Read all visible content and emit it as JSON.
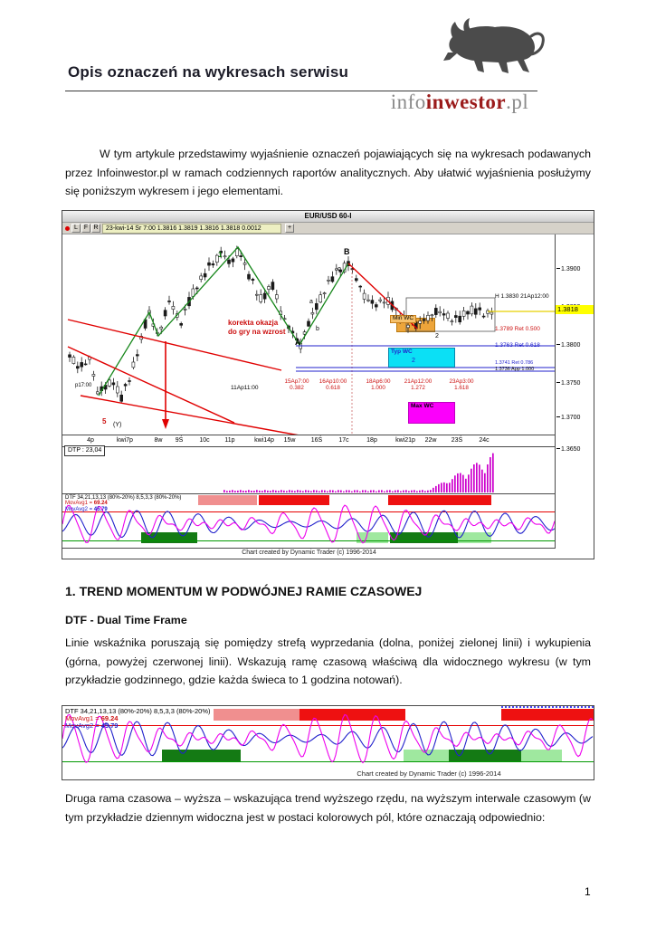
{
  "doc": {
    "title": "Opis oznaczeń na wykresach serwisu",
    "intro": "W tym artykule przedstawimy wyjaśnienie oznaczeń pojawiających się na wykresach podawanych przez Infoinwestor.pl w ramach codziennych raportów analitycznych. Aby ułatwić wyjaśnienia posłużymy się poniższym wykresem i jego elementami.",
    "page_number": "1"
  },
  "logo": {
    "info": "info",
    "inwestor": "inwestor",
    "pl": ".pl"
  },
  "section1": {
    "heading": "1. TREND MOMENTUM W PODWÓJNEJ RAMIE CZASOWEJ",
    "subheading": "DTF - Dual Time Frame",
    "para1": "Linie wskaźnika poruszają się pomiędzy strefą wyprzedania (dolna, poniżej zielonej linii) i wykupienia (górna, powyżej czerwonej linii). Wskazują ramę czasową właściwą dla widocznego wykresu (w tym przykładzie godzinnego, gdzie każda świeca to 1 godzina notowań).",
    "para2": "Druga rama czasowa – wyższa – wskazująca trend wyższego rzędu, na wyższym interwale czasowym (w tym przykładzie dziennym widoczna jest w postaci kolorowych pól, które oznaczają odpowiednio:"
  },
  "chart1": {
    "title": "EUR/USD 60-I",
    "toolbar": {
      "l": "L",
      "f": "F",
      "r": "R",
      "ohlc": "23-kwi-14 Śr 7:00  1.3816  1.3819  1.3816  1.3818  0.0012",
      "plus": "+"
    },
    "price_axis": [
      "1.3900",
      "1.3850",
      "1.3800",
      "1.3750",
      "1.3700",
      "1.3650"
    ],
    "labels": {
      "high": "H 1.3830 21Ap12:00",
      "current": "1.3818",
      "ret500": "1.3789 Ret 0.500",
      "ret618": "1.3763 Ret 0.618",
      "ret786": "1.3741 Ret 0.786",
      "app1000": "1.3736 App 1.000",
      "note1": "korekta okazja",
      "note2": "do gry na wzrost",
      "a": "A",
      "b": "B",
      "w1": "1",
      "w2": "2",
      "w5": "5",
      "wy": "(Y)",
      "sa": "a",
      "sb": "b",
      "sc": "c",
      "min_wc": "Min WC",
      "typ_wc": "Typ WC",
      "typ_wc_n": "2",
      "max_wc": "Max WC",
      "t11": "11Ap11:00",
      "t17": "p17:00"
    },
    "time_labels": [
      {
        "t": "15Ap7:00",
        "f": "0.382"
      },
      {
        "t": "16Ap10:00",
        "f": "0.618"
      },
      {
        "t": "18Ap6:00",
        "f": "1.000"
      },
      {
        "t": "21Ap12:00",
        "f": "1.272"
      },
      {
        "t": "23Ap3:00",
        "f": "1.618"
      }
    ],
    "x_axis": [
      "4p",
      "kwi7p",
      "8w",
      "9Ś",
      "10c",
      "11p",
      "kwi14p",
      "15w",
      "16Ś",
      "17c",
      "18p",
      "kwi21p",
      "22w",
      "23Ś",
      "24c"
    ],
    "dtp_label": "DTP : 23,04",
    "price_path": [
      [
        8,
        132
      ],
      [
        20,
        150
      ],
      [
        30,
        136
      ],
      [
        40,
        178
      ],
      [
        55,
        160
      ],
      [
        66,
        182
      ],
      [
        80,
        140
      ],
      [
        96,
        86
      ],
      [
        106,
        112
      ],
      [
        120,
        70
      ],
      [
        130,
        100
      ],
      [
        146,
        60
      ],
      [
        160,
        40
      ],
      [
        176,
        18
      ],
      [
        186,
        36
      ],
      [
        194,
        14
      ],
      [
        206,
        46
      ],
      [
        220,
        72
      ],
      [
        232,
        56
      ],
      [
        246,
        96
      ],
      [
        262,
        122
      ],
      [
        276,
        90
      ],
      [
        290,
        60
      ],
      [
        304,
        40
      ],
      [
        316,
        32
      ],
      [
        330,
        60
      ],
      [
        344,
        80
      ],
      [
        358,
        70
      ],
      [
        372,
        90
      ],
      [
        390,
        102
      ],
      [
        404,
        90
      ],
      [
        420,
        86
      ],
      [
        436,
        96
      ],
      [
        450,
        82
      ],
      [
        465,
        88
      ],
      [
        476,
        84
      ]
    ]
  },
  "dtf": {
    "settings": "DTF 34,21,13,13 (80%-20%) 8,5,3,3 (80%-20%)",
    "mov1": "MovAvg1 =",
    "mov1_val": "69.24",
    "mov2": "MovAvg2 =",
    "mov2_val": "45.79",
    "credit": "Chart created by Dynamic Trader  (c) 1996-2014"
  }
}
